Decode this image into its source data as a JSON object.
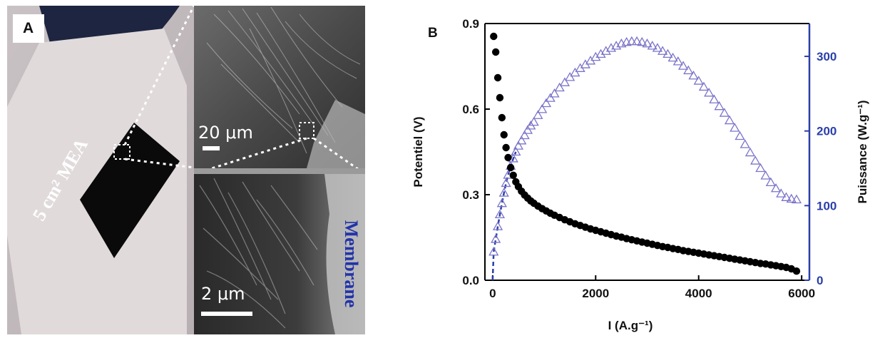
{
  "panel_a": {
    "letter": "A",
    "mea_label": "5 cm² MEA",
    "membrane_label": "Membrane",
    "scale_top": "20 μm",
    "scale_bottom": "2 μm"
  },
  "panel_b": {
    "letter": "B"
  },
  "chart_data": {
    "type": "scatter",
    "xlabel": "I (A.g⁻¹)",
    "ylabel_left": "Potentiel (V)",
    "ylabel_right": "Puissance (W.g⁻¹)",
    "xlim": [
      -150,
      6150
    ],
    "ylim_left": [
      0,
      0.9
    ],
    "ylim_right": [
      0,
      344
    ],
    "xticks": [
      0,
      2000,
      4000,
      6000
    ],
    "yticks_left": [
      0.0,
      0.3,
      0.6,
      0.9
    ],
    "yticks_right": [
      0,
      100,
      200,
      300
    ],
    "colors": {
      "potential": "#000000",
      "power": "#7b74c9",
      "power_line": "#2a3fa8",
      "right_axis": "#2a3fa8"
    },
    "series": [
      {
        "name": "Potentiel",
        "marker": "filled-circle",
        "axis": "left",
        "x": [
          20,
          60,
          100,
          140,
          180,
          220,
          260,
          300,
          350,
          400,
          450,
          500,
          560,
          620,
          680,
          740,
          800,
          880,
          960,
          1040,
          1120,
          1200,
          1300,
          1400,
          1500,
          1600,
          1700,
          1800,
          1900,
          2000,
          2100,
          2200,
          2300,
          2400,
          2500,
          2600,
          2700,
          2800,
          2900,
          3000,
          3100,
          3200,
          3300,
          3400,
          3500,
          3600,
          3700,
          3800,
          3900,
          4000,
          4100,
          4200,
          4300,
          4400,
          4500,
          4600,
          4700,
          4800,
          4900,
          5000,
          5100,
          5200,
          5300,
          5400,
          5500,
          5600,
          5700,
          5800,
          5900
        ],
        "y": [
          0.855,
          0.8,
          0.71,
          0.64,
          0.57,
          0.51,
          0.465,
          0.43,
          0.395,
          0.368,
          0.345,
          0.328,
          0.312,
          0.299,
          0.288,
          0.278,
          0.27,
          0.26,
          0.251,
          0.243,
          0.235,
          0.228,
          0.22,
          0.212,
          0.205,
          0.198,
          0.192,
          0.186,
          0.18,
          0.175,
          0.17,
          0.165,
          0.16,
          0.155,
          0.151,
          0.146,
          0.142,
          0.138,
          0.134,
          0.13,
          0.126,
          0.122,
          0.118,
          0.115,
          0.111,
          0.108,
          0.104,
          0.101,
          0.098,
          0.095,
          0.092,
          0.089,
          0.086,
          0.083,
          0.08,
          0.077,
          0.074,
          0.071,
          0.068,
          0.065,
          0.062,
          0.059,
          0.057,
          0.054,
          0.051,
          0.048,
          0.045,
          0.04,
          0.032
        ]
      },
      {
        "name": "Puissance",
        "marker": "open-triangle",
        "axis": "right",
        "x": [
          20,
          60,
          100,
          140,
          180,
          220,
          260,
          300,
          350,
          400,
          450,
          500,
          560,
          620,
          680,
          740,
          800,
          880,
          960,
          1040,
          1120,
          1200,
          1300,
          1400,
          1500,
          1600,
          1700,
          1800,
          1900,
          2000,
          2100,
          2200,
          2300,
          2400,
          2500,
          2600,
          2700,
          2800,
          2900,
          3000,
          3100,
          3200,
          3300,
          3400,
          3500,
          3600,
          3700,
          3800,
          3900,
          4000,
          4100,
          4200,
          4300,
          4400,
          4500,
          4600,
          4700,
          4800,
          4900,
          5000,
          5100,
          5200,
          5300,
          5400,
          5500,
          5600,
          5700,
          5800,
          5900
        ],
        "y": [
          38,
          55,
          72,
          88,
          103,
          117,
          130,
          141,
          153,
          163,
          172,
          180,
          187,
          194,
          201,
          207,
          212,
          221,
          229,
          237,
          244,
          250,
          258,
          265,
          272,
          278,
          284,
          289,
          294,
          299,
          303,
          307,
          311,
          314,
          317,
          319,
          320,
          320,
          319,
          317,
          314,
          311,
          307,
          303,
          298,
          293,
          287,
          281,
          274,
          267,
          259,
          251,
          242,
          233,
          224,
          214,
          204,
          193,
          182,
          171,
          160,
          150,
          140,
          131,
          123,
          116,
          111,
          109,
          108
        ]
      }
    ]
  }
}
